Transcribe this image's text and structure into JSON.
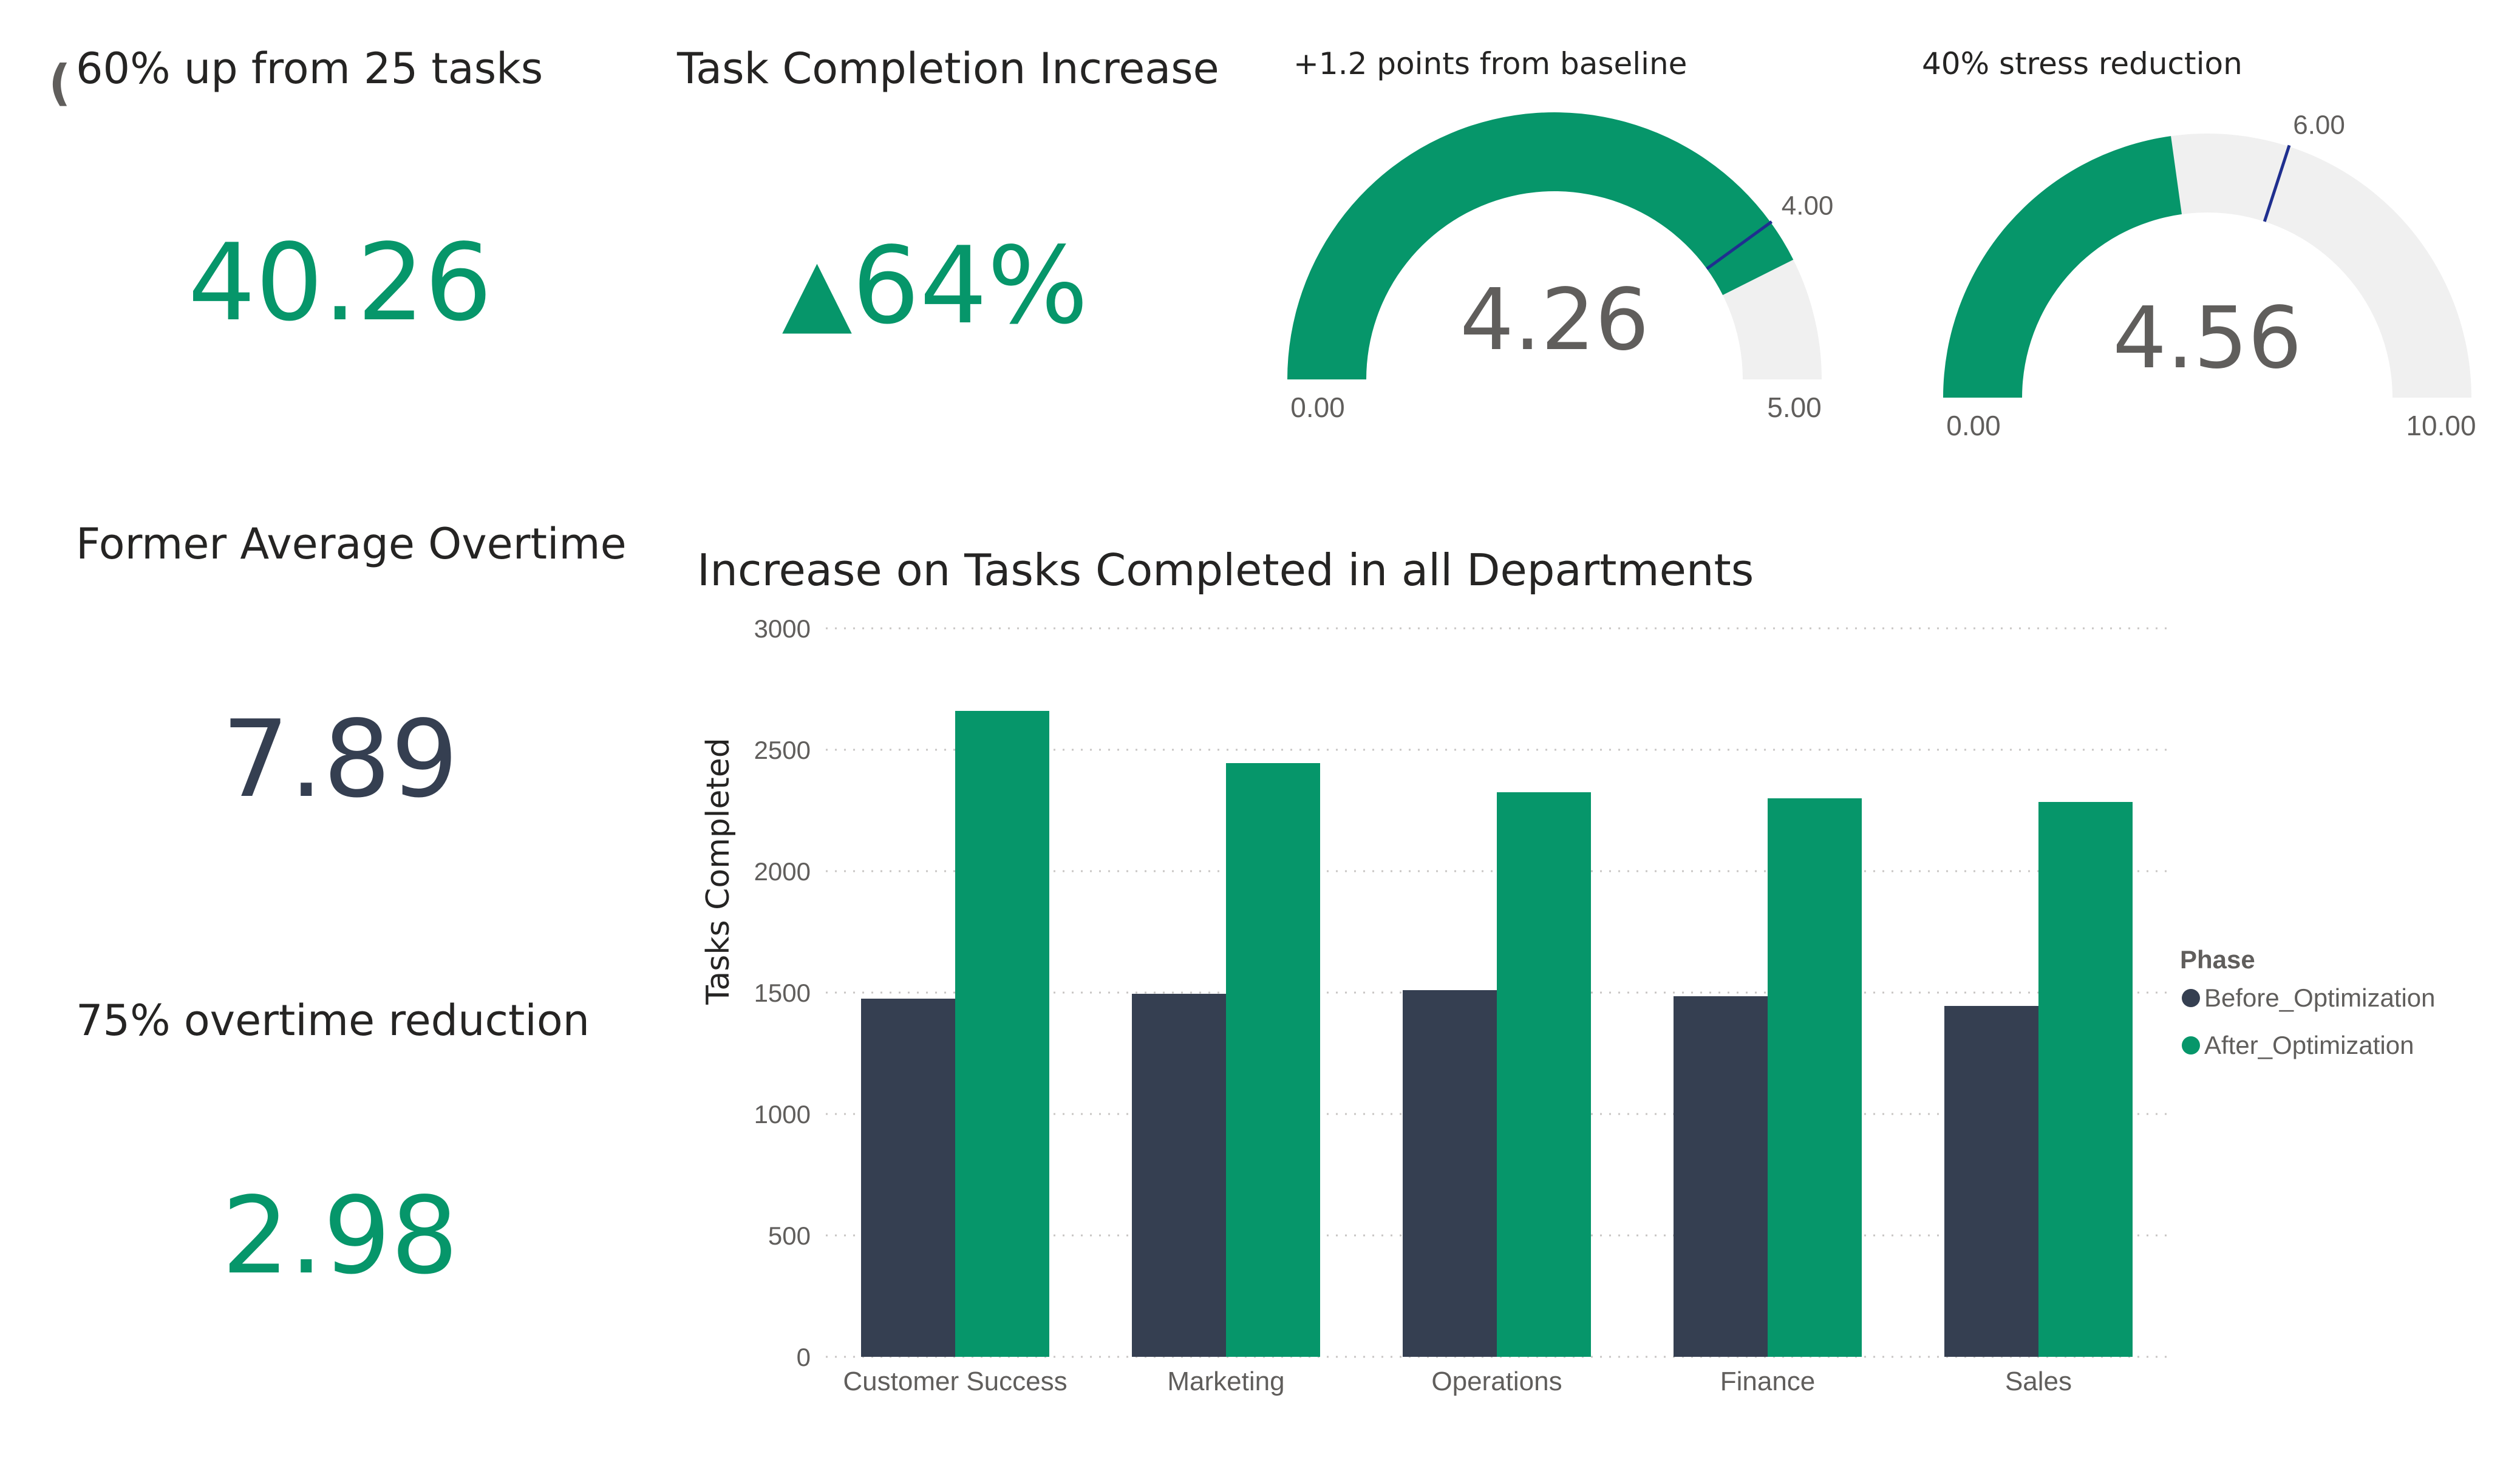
{
  "colors": {
    "green": "#06966a",
    "navy": "#353f51",
    "track": "#f0f0f0",
    "target_line": "#1f2f8f",
    "text_dark": "#252423",
    "text_mid": "#605e5c"
  },
  "cards": {
    "tasks": {
      "title": "60% up from 25 tasks",
      "value": "40.26"
    },
    "completion": {
      "title": "Task Completion Increase",
      "arrow": "▲",
      "value": "64%"
    },
    "former_overtime": {
      "title": "Former Average Overtime",
      "value": "7.89"
    },
    "overtime_reduction": {
      "title": "75% overtime reduction",
      "value": "2.98"
    }
  },
  "gauges": [
    {
      "title": "+1.2 points from baseline",
      "value": 4.26,
      "value_label": "4.26",
      "min": 0,
      "min_label": "0.00",
      "max": 5,
      "max_label": "5.00",
      "target": 4,
      "target_label": "4.00"
    },
    {
      "title": "40% stress reduction",
      "value": 4.56,
      "value_label": "4.56",
      "min": 0,
      "min_label": "0.00",
      "max": 10,
      "max_label": "10.00",
      "target": 6,
      "target_label": "6.00"
    }
  ],
  "chart_data": {
    "type": "bar",
    "title": "Increase on Tasks Completed in all Departments",
    "xlabel": "",
    "ylabel": "Tasks Completed",
    "ylim": [
      0,
      3000
    ],
    "yticks": [
      0,
      500,
      1000,
      1500,
      2000,
      2500,
      3000
    ],
    "grid": true,
    "legend_title": "Phase",
    "legend_position": "right",
    "categories": [
      "Customer Success",
      "Marketing",
      "Operations",
      "Finance",
      "Sales"
    ],
    "series": [
      {
        "name": "Before_Optimization",
        "color": "#353f51",
        "values": [
          1475,
          1495,
          1510,
          1485,
          1445
        ]
      },
      {
        "name": "After_Optimization",
        "color": "#06966a",
        "values": [
          2660,
          2445,
          2325,
          2300,
          2285
        ]
      }
    ]
  }
}
